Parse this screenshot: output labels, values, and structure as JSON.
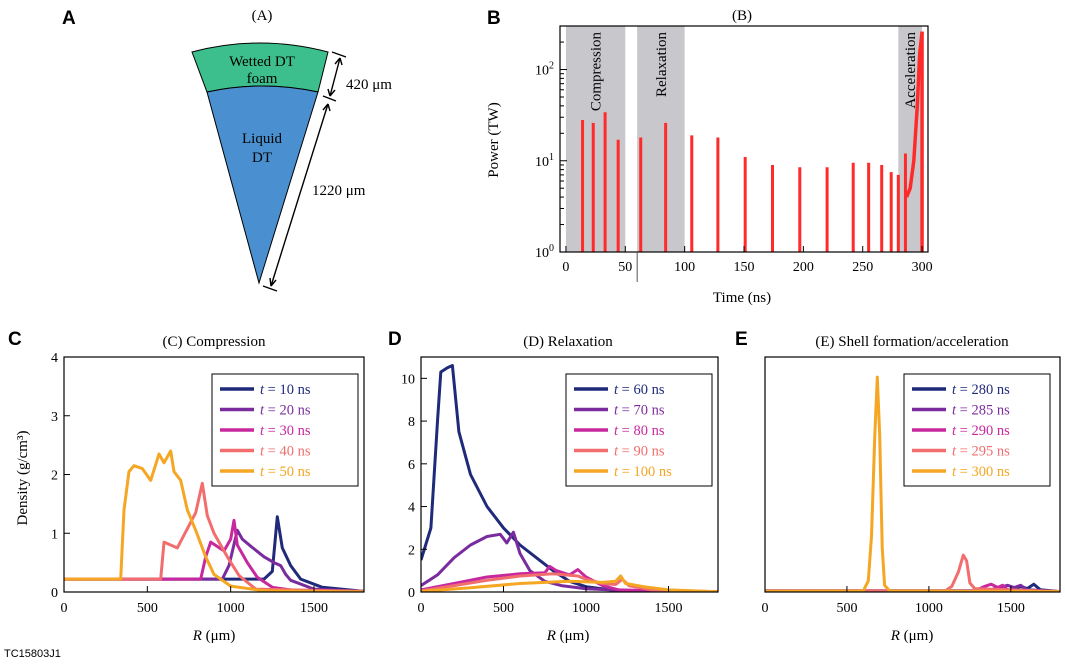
{
  "figure_id": "TC15803J1",
  "panel_letters": [
    "A",
    "B",
    "C",
    "D",
    "E"
  ],
  "colors": {
    "t1": "#1f2a7a",
    "t2": "#7a2c9e",
    "t3": "#c8289e",
    "t4": "#f26d6d",
    "t5": "#f5a623",
    "foam": "#3cbf8c",
    "liquid": "#4a90d0",
    "pulse": "#ff2a2a",
    "shade": "#c8c8cc"
  },
  "panel_a": {
    "title": "(A)",
    "foam_label_1": "Wetted DT",
    "foam_label_2": "foam",
    "liquid_label_1": "Liquid",
    "liquid_label_2": "DT",
    "dim_foam": "420 μm",
    "dim_liquid": "1220 μm"
  },
  "chart_data": [
    {
      "id": "B",
      "type": "bar",
      "title": "(B)",
      "xlabel": "Time (ns)",
      "ylabel": "Power (TW)",
      "yscale": "log",
      "ylim": [
        1,
        300
      ],
      "xlim": [
        -5,
        305
      ],
      "xticks": [
        0,
        50,
        100,
        150,
        200,
        250,
        300
      ],
      "yticks": [
        {
          "v": 1,
          "l": "10",
          "e": "0"
        },
        {
          "v": 10,
          "l": "10",
          "e": "1"
        },
        {
          "v": 100,
          "l": "10",
          "e": "2"
        }
      ],
      "phases": [
        {
          "label": "Compression",
          "start": 0,
          "end": 50
        },
        {
          "label": "Relaxation",
          "start": 60,
          "end": 100
        },
        {
          "label": "Acceleration",
          "start": 280,
          "end": 300
        }
      ],
      "spikes": [
        {
          "t": 14,
          "p": 28
        },
        {
          "t": 23,
          "p": 26
        },
        {
          "t": 33,
          "p": 34
        },
        {
          "t": 44,
          "p": 17
        },
        {
          "t": 63,
          "p": 18
        },
        {
          "t": 84,
          "p": 26
        },
        {
          "t": 106,
          "p": 19
        },
        {
          "t": 128,
          "p": 18
        },
        {
          "t": 151,
          "p": 11
        },
        {
          "t": 174,
          "p": 9
        },
        {
          "t": 197,
          "p": 8.5
        },
        {
          "t": 220,
          "p": 8.5
        },
        {
          "t": 242,
          "p": 9.5
        },
        {
          "t": 255,
          "p": 9.5
        },
        {
          "t": 266,
          "p": 9
        },
        {
          "t": 274,
          "p": 7.5
        },
        {
          "t": 280,
          "p": 7
        },
        {
          "t": 286,
          "p": 12
        }
      ],
      "final_pulse": [
        [
          287,
          4
        ],
        [
          290,
          5
        ],
        [
          293,
          10
        ],
        [
          296,
          40
        ],
        [
          298,
          150
        ],
        [
          300,
          260
        ]
      ]
    },
    {
      "id": "C",
      "type": "line",
      "title": "(C) Compression",
      "xlabel": "R (μm)",
      "ylabel": "Density (g/cm³)",
      "xlim": [
        0,
        1800
      ],
      "ylim": [
        0,
        4
      ],
      "xticks": [
        0,
        500,
        1000,
        1500
      ],
      "yticks": [
        0,
        1,
        2,
        3,
        4
      ],
      "series": [
        {
          "name": "t = 10 ns",
          "t": "10",
          "points": [
            [
              0,
              0.22
            ],
            [
              1150,
              0.22
            ],
            [
              1200,
              0.22
            ],
            [
              1250,
              0.35
            ],
            [
              1280,
              1.28
            ],
            [
              1310,
              0.75
            ],
            [
              1360,
              0.45
            ],
            [
              1420,
              0.22
            ],
            [
              1550,
              0.08
            ],
            [
              1800,
              0.01
            ]
          ]
        },
        {
          "name": "t = 20 ns",
          "t": "20",
          "points": [
            [
              0,
              0.22
            ],
            [
              950,
              0.22
            ],
            [
              990,
              0.45
            ],
            [
              1040,
              1.05
            ],
            [
              1070,
              0.9
            ],
            [
              1120,
              0.78
            ],
            [
              1200,
              0.6
            ],
            [
              1260,
              0.5
            ],
            [
              1300,
              0.45
            ],
            [
              1330,
              0.3
            ],
            [
              1360,
              0.2
            ],
            [
              1500,
              0.05
            ],
            [
              1800,
              0.01
            ]
          ]
        },
        {
          "name": "t = 30 ns",
          "t": "30",
          "points": [
            [
              0,
              0.22
            ],
            [
              820,
              0.22
            ],
            [
              850,
              0.6
            ],
            [
              880,
              0.85
            ],
            [
              960,
              0.7
            ],
            [
              1000,
              0.9
            ],
            [
              1020,
              1.22
            ],
            [
              1040,
              0.8
            ],
            [
              1100,
              0.5
            ],
            [
              1160,
              0.25
            ],
            [
              1250,
              0.08
            ],
            [
              1400,
              0.02
            ],
            [
              1800,
              0.01
            ]
          ]
        },
        {
          "name": "t = 40 ns",
          "t": "40",
          "points": [
            [
              0,
              0.22
            ],
            [
              580,
              0.22
            ],
            [
              600,
              0.85
            ],
            [
              680,
              0.75
            ],
            [
              790,
              1.35
            ],
            [
              830,
              1.85
            ],
            [
              860,
              1.3
            ],
            [
              900,
              1.0
            ],
            [
              980,
              0.6
            ],
            [
              1050,
              0.28
            ],
            [
              1150,
              0.05
            ],
            [
              1800,
              0.01
            ]
          ]
        },
        {
          "name": "t = 50 ns",
          "t": "50",
          "points": [
            [
              0,
              0.22
            ],
            [
              340,
              0.22
            ],
            [
              360,
              1.4
            ],
            [
              390,
              2.05
            ],
            [
              420,
              2.15
            ],
            [
              470,
              2.1
            ],
            [
              520,
              1.9
            ],
            [
              570,
              2.35
            ],
            [
              600,
              2.2
            ],
            [
              640,
              2.4
            ],
            [
              660,
              2.05
            ],
            [
              700,
              1.9
            ],
            [
              740,
              1.4
            ],
            [
              790,
              1.05
            ],
            [
              850,
              0.6
            ],
            [
              900,
              0.3
            ],
            [
              1000,
              0.1
            ],
            [
              1200,
              0.02
            ],
            [
              1800,
              0.0
            ]
          ]
        }
      ]
    },
    {
      "id": "D",
      "type": "line",
      "title": "(D) Relaxation",
      "xlabel": "R (μm)",
      "ylabel": "",
      "xlim": [
        0,
        1800
      ],
      "ylim": [
        0,
        11
      ],
      "xticks": [
        0,
        500,
        1000,
        1500
      ],
      "yticks": [
        0,
        2,
        4,
        6,
        8,
        10
      ],
      "series": [
        {
          "name": "t = 60 ns",
          "t": "60",
          "points": [
            [
              0,
              1.5
            ],
            [
              60,
              3
            ],
            [
              100,
              8
            ],
            [
              120,
              10.3
            ],
            [
              160,
              10.5
            ],
            [
              190,
              10.6
            ],
            [
              230,
              7.5
            ],
            [
              300,
              5.5
            ],
            [
              400,
              4
            ],
            [
              500,
              3
            ],
            [
              600,
              2.2
            ],
            [
              700,
              1.6
            ],
            [
              800,
              1.0
            ],
            [
              900,
              0.5
            ],
            [
              1000,
              0.25
            ],
            [
              1200,
              0.05
            ],
            [
              1800,
              0.01
            ]
          ]
        },
        {
          "name": "t = 70 ns",
          "t": "70",
          "points": [
            [
              0,
              0.3
            ],
            [
              100,
              0.8
            ],
            [
              200,
              1.6
            ],
            [
              300,
              2.2
            ],
            [
              400,
              2.6
            ],
            [
              480,
              2.7
            ],
            [
              520,
              2.3
            ],
            [
              560,
              2.8
            ],
            [
              600,
              1.8
            ],
            [
              660,
              1.0
            ],
            [
              750,
              0.5
            ],
            [
              850,
              0.3
            ],
            [
              1000,
              0.15
            ],
            [
              1300,
              0.05
            ],
            [
              1800,
              0.01
            ]
          ]
        },
        {
          "name": "t = 80 ns",
          "t": "80",
          "points": [
            [
              0,
              0.1
            ],
            [
              200,
              0.4
            ],
            [
              400,
              0.7
            ],
            [
              600,
              0.85
            ],
            [
              750,
              0.9
            ],
            [
              780,
              1.2
            ],
            [
              820,
              1.0
            ],
            [
              900,
              0.8
            ],
            [
              950,
              1.05
            ],
            [
              1000,
              0.7
            ],
            [
              1100,
              0.3
            ],
            [
              1200,
              0.1
            ],
            [
              1800,
              0.01
            ]
          ]
        },
        {
          "name": "t = 90 ns",
          "t": "90",
          "points": [
            [
              0,
              0.05
            ],
            [
              200,
              0.3
            ],
            [
              400,
              0.55
            ],
            [
              600,
              0.75
            ],
            [
              800,
              0.85
            ],
            [
              950,
              0.75
            ],
            [
              1000,
              0.6
            ],
            [
              1100,
              0.4
            ],
            [
              1180,
              0.35
            ],
            [
              1220,
              0.6
            ],
            [
              1260,
              0.3
            ],
            [
              1400,
              0.1
            ],
            [
              1800,
              0.01
            ]
          ]
        },
        {
          "name": "t = 100 ns",
          "t": "100",
          "points": [
            [
              0,
              0.03
            ],
            [
              300,
              0.2
            ],
            [
              600,
              0.4
            ],
            [
              900,
              0.5
            ],
            [
              1100,
              0.45
            ],
            [
              1180,
              0.5
            ],
            [
              1210,
              0.75
            ],
            [
              1240,
              0.4
            ],
            [
              1350,
              0.25
            ],
            [
              1500,
              0.1
            ],
            [
              1800,
              0.01
            ]
          ]
        }
      ]
    },
    {
      "id": "E",
      "type": "line",
      "title": "(E) Shell formation/acceleration",
      "xlabel": "R (μm)",
      "ylabel": "",
      "xlim": [
        0,
        1800
      ],
      "ylim": [
        0,
        10.5
      ],
      "xticks": [
        0,
        500,
        1000,
        1500
      ],
      "yticks": [],
      "series": [
        {
          "name": "t = 280 ns",
          "t": "280",
          "points": [
            [
              0,
              0.05
            ],
            [
              1400,
              0.05
            ],
            [
              1500,
              0.1
            ],
            [
              1560,
              0.25
            ],
            [
              1600,
              0.15
            ],
            [
              1640,
              0.35
            ],
            [
              1680,
              0.1
            ],
            [
              1800,
              0.02
            ]
          ]
        },
        {
          "name": "t = 285 ns",
          "t": "285",
          "points": [
            [
              0,
              0.05
            ],
            [
              1350,
              0.05
            ],
            [
              1430,
              0.2
            ],
            [
              1480,
              0.3
            ],
            [
              1520,
              0.2
            ],
            [
              1560,
              0.3
            ],
            [
              1600,
              0.1
            ],
            [
              1800,
              0.02
            ]
          ]
        },
        {
          "name": "t = 290 ns",
          "t": "290",
          "points": [
            [
              0,
              0.05
            ],
            [
              1280,
              0.05
            ],
            [
              1340,
              0.25
            ],
            [
              1380,
              0.35
            ],
            [
              1420,
              0.2
            ],
            [
              1450,
              0.3
            ],
            [
              1480,
              0.1
            ],
            [
              1800,
              0.02
            ]
          ]
        },
        {
          "name": "t = 295 ns",
          "t": "295",
          "points": [
            [
              0,
              0.05
            ],
            [
              1100,
              0.05
            ],
            [
              1140,
              0.25
            ],
            [
              1180,
              0.9
            ],
            [
              1210,
              1.65
            ],
            [
              1230,
              1.4
            ],
            [
              1250,
              0.4
            ],
            [
              1280,
              0.15
            ],
            [
              1800,
              0.02
            ]
          ]
        },
        {
          "name": "t = 300 ns",
          "t": "300",
          "points": [
            [
              0,
              0.03
            ],
            [
              600,
              0.05
            ],
            [
              630,
              0.5
            ],
            [
              650,
              2.5
            ],
            [
              670,
              7
            ],
            [
              685,
              9.6
            ],
            [
              700,
              7
            ],
            [
              715,
              2
            ],
            [
              730,
              0.3
            ],
            [
              760,
              0.05
            ],
            [
              1800,
              0.02
            ]
          ]
        }
      ]
    }
  ]
}
